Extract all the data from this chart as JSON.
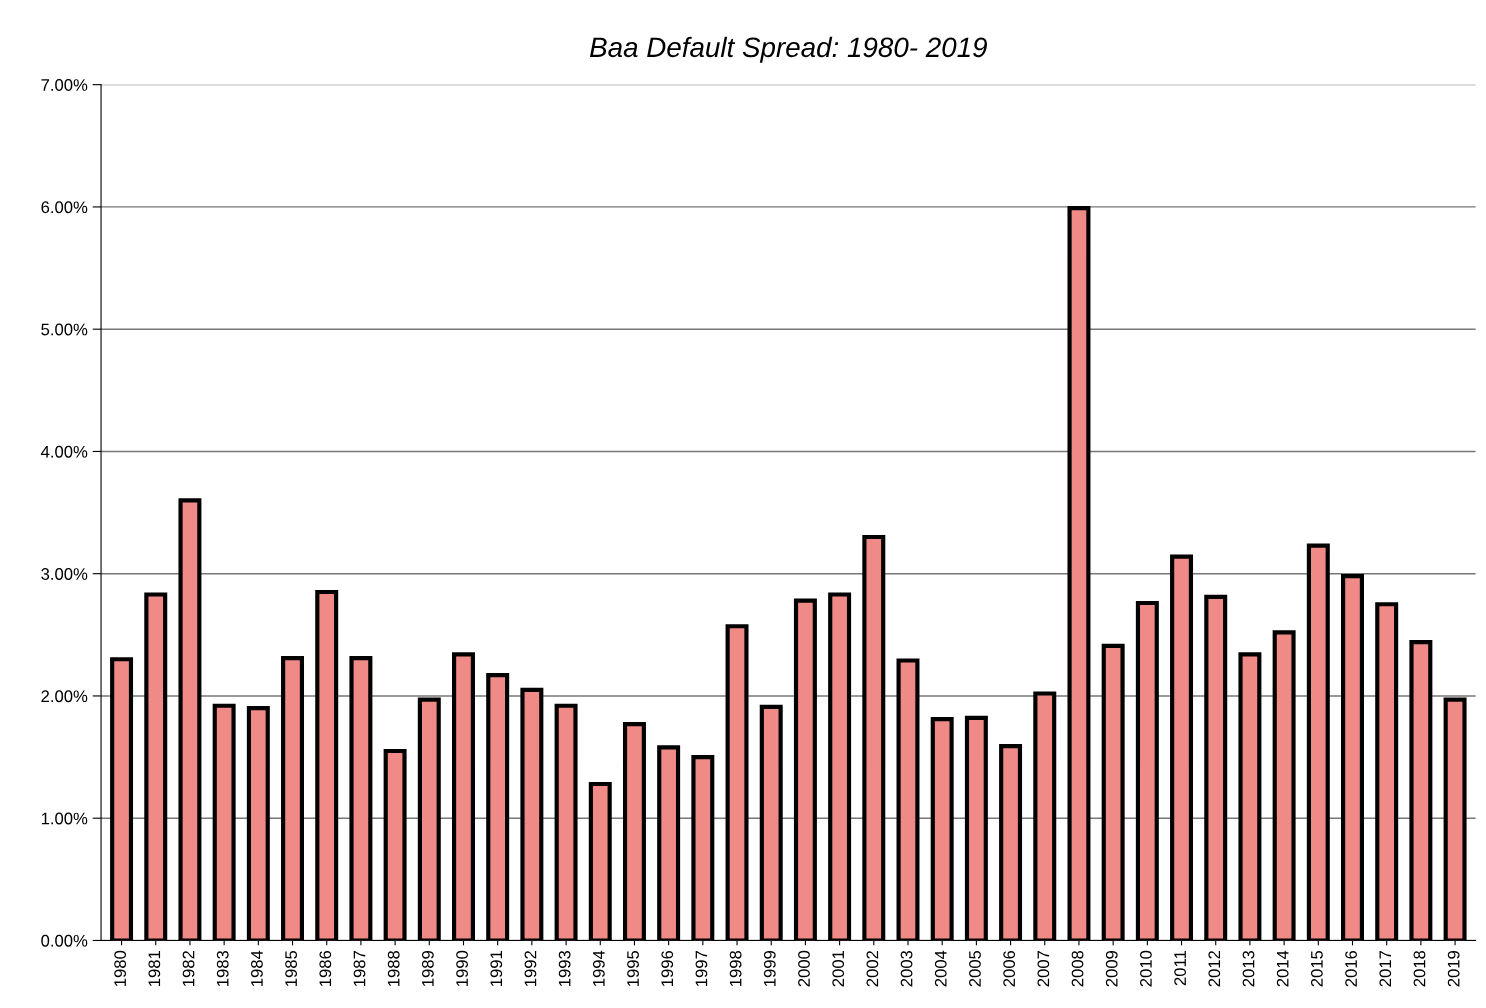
{
  "chart_data": {
    "type": "bar",
    "title": "Baa Default Spread: 1980- 2019",
    "categories": [
      "1980",
      "1981",
      "1982",
      "1983",
      "1984",
      "1985",
      "1986",
      "1987",
      "1988",
      "1989",
      "1990",
      "1991",
      "1992",
      "1993",
      "1994",
      "1995",
      "1996",
      "1997",
      "1998",
      "1999",
      "2000",
      "2001",
      "2002",
      "2003",
      "2004",
      "2005",
      "2006",
      "2007",
      "2008",
      "2009",
      "2010",
      "2011",
      "2012",
      "2013",
      "2014",
      "2015",
      "2016",
      "2017",
      "2018",
      "2019"
    ],
    "values": [
      2.3,
      2.83,
      3.6,
      1.92,
      1.9,
      2.31,
      2.85,
      2.31,
      1.55,
      1.97,
      2.34,
      2.17,
      2.05,
      1.92,
      1.28,
      1.77,
      1.58,
      1.5,
      2.57,
      1.91,
      2.78,
      2.83,
      3.3,
      2.29,
      1.81,
      1.82,
      1.59,
      2.02,
      5.99,
      2.41,
      2.76,
      3.14,
      2.81,
      2.34,
      2.52,
      3.23,
      2.98,
      2.75,
      2.44,
      1.97
    ],
    "color": "#f08a86",
    "ylim": [
      0,
      7
    ],
    "yticks": [
      {
        "value": 0,
        "label": "0.00%"
      },
      {
        "value": 1,
        "label": "1.00%"
      },
      {
        "value": 2,
        "label": "2.00%"
      },
      {
        "value": 3,
        "label": "3.00%"
      },
      {
        "value": 4,
        "label": "4.00%"
      },
      {
        "value": 5,
        "label": "5.00%"
      },
      {
        "value": 6,
        "label": "6.00%"
      },
      {
        "value": 7,
        "label": "7.00%"
      }
    ],
    "grid": "y",
    "legend": false
  }
}
